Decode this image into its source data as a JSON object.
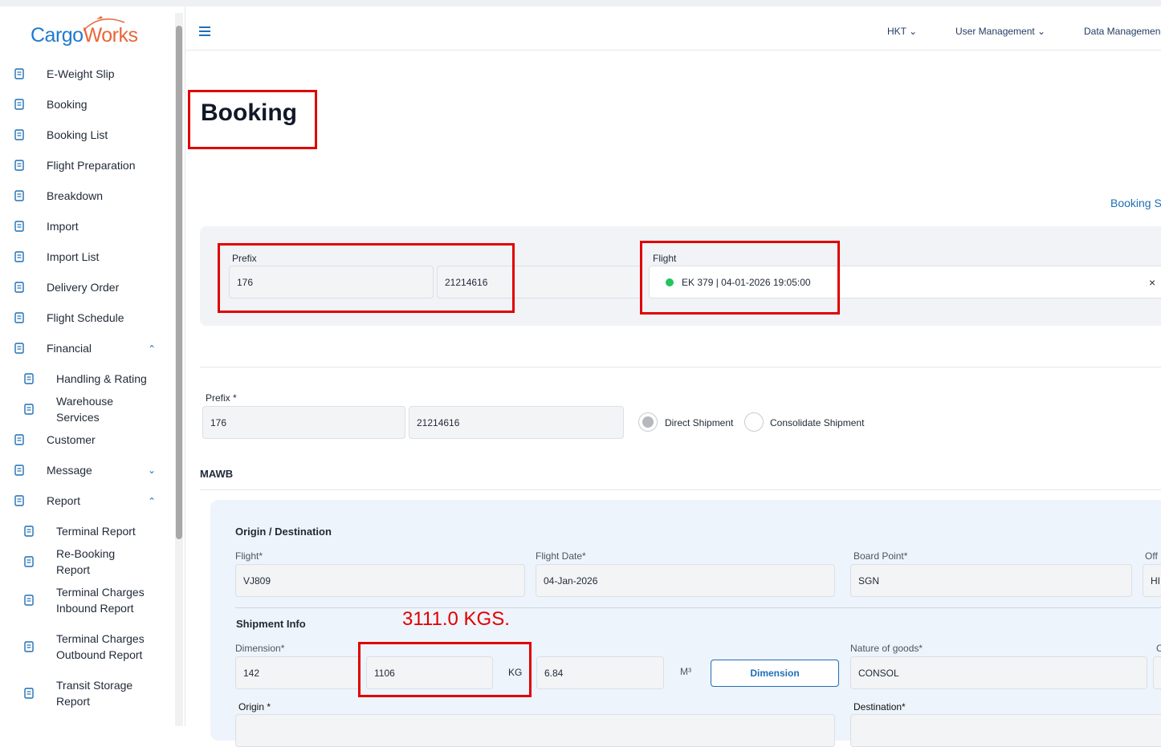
{
  "sidebar": {
    "logo": {
      "part1": "Cargo",
      "part2": "Works"
    },
    "items": [
      {
        "label": "E-Weight Slip"
      },
      {
        "label": "Booking"
      },
      {
        "label": "Booking List"
      },
      {
        "label": "Flight Preparation"
      },
      {
        "label": "Breakdown"
      },
      {
        "label": "Import"
      },
      {
        "label": "Import List"
      },
      {
        "label": "Delivery Order"
      },
      {
        "label": "Flight Schedule"
      },
      {
        "label": "Financial",
        "expanded": true,
        "children": [
          "Handling & Rating",
          "Warehouse Services"
        ]
      },
      {
        "label": "Customer"
      },
      {
        "label": "Message",
        "expanded": false
      },
      {
        "label": "Report",
        "expanded": true,
        "children": [
          "Terminal Report",
          "Re-Booking Report",
          "Terminal Charges Inbound Report",
          "Terminal Charges Outbound Report",
          "Transit Storage Report"
        ]
      }
    ]
  },
  "topbar": {
    "menu": [
      "HKT",
      "User Management",
      "Data Managemen"
    ]
  },
  "page": {
    "title": "Booking",
    "link": "Booking S",
    "search": {
      "prefix_label": "Prefix",
      "prefix": "176",
      "number": "21214616",
      "flight_label": "Flight",
      "flight": "EK 379 | 04-01-2026 19:05:00",
      "clear": "×"
    },
    "awb": {
      "prefix_label": "Prefix *",
      "prefix": "176",
      "number": "21214616",
      "options": [
        "Direct Shipment",
        "Consolidate Shipment"
      ]
    },
    "section": "MAWB",
    "origin_destination": {
      "title": "Origin / Destination",
      "fields": [
        {
          "label": "Flight*",
          "value": "VJ809"
        },
        {
          "label": "Flight Date*",
          "value": "04-Jan-2026"
        },
        {
          "label": "Board Point*",
          "value": "SGN"
        },
        {
          "label": "Off",
          "value": "HI"
        }
      ]
    },
    "shipment_info": {
      "title": "Shipment Info",
      "annotation": "3111.0 KGS.",
      "dimension_label": "Dimension*",
      "pieces": "142",
      "weight": "1106",
      "weight_unit": "KG",
      "volume": "6.84",
      "volume_unit": "M³",
      "button": "Dimension",
      "nature_label": "Nature of goods*",
      "nature": "CONSOL",
      "extra_label": "C",
      "origin_label": "Origin *",
      "destination_label": "Destination*"
    }
  }
}
